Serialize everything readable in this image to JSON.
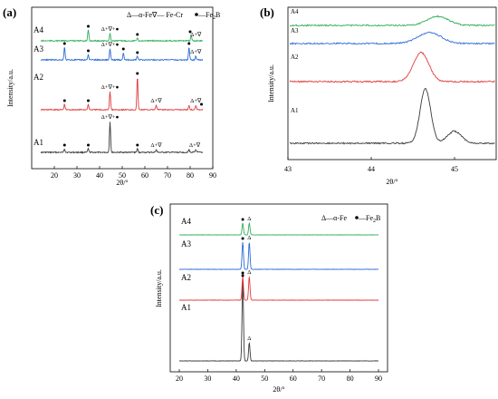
{
  "chart_data": [
    {
      "panel_label": "(a)",
      "type": "line",
      "xlabel": "2θ/°",
      "ylabel": "Intensity/a.u.",
      "xlim": [
        10,
        90
      ],
      "xticks": [
        "20",
        "30",
        "40",
        "50",
        "60",
        "70",
        "80",
        "90"
      ],
      "legend": "Δ—α-Fe∇— Fe-Cr ●—Fe₂B",
      "legend_parts": {
        "a": "Δ—α-Fe",
        "b": "∇— Fe-Cr",
        "c": "—Fe",
        "sub": "2",
        "d": "B"
      },
      "series": [
        {
          "name": "A1",
          "color": "#3a3a3a",
          "peaks": [
            {
              "x": 24.5,
              "h": 4
            },
            {
              "x": 35,
              "h": 4
            },
            {
              "x": 44.6,
              "h": 34
            },
            {
              "x": 56.7,
              "h": 4
            },
            {
              "x": 65,
              "h": 3
            },
            {
              "x": 79.5,
              "h": 3
            },
            {
              "x": 82.5,
              "h": 3
            }
          ],
          "annotations": [
            {
              "x": 24.5,
              "text": "●"
            },
            {
              "x": 35,
              "text": "●"
            },
            {
              "x": 44.6,
              "text": "Δ+∇+●"
            },
            {
              "x": 56.7,
              "text": "●"
            },
            {
              "x": 65,
              "text": "Δ+∇"
            },
            {
              "x": 82,
              "text": "Δ+∇"
            }
          ]
        },
        {
          "name": "A2",
          "color": "#e03c3c",
          "peaks": [
            {
              "x": 24.5,
              "h": 6
            },
            {
              "x": 35,
              "h": 6
            },
            {
              "x": 44.6,
              "h": 20
            },
            {
              "x": 56.7,
              "h": 36
            },
            {
              "x": 65,
              "h": 5
            },
            {
              "x": 79.5,
              "h": 5
            },
            {
              "x": 82.5,
              "h": 5
            }
          ],
          "annotations": [
            {
              "x": 24.5,
              "text": "●"
            },
            {
              "x": 35,
              "text": "●"
            },
            {
              "x": 44.6,
              "text": "Δ+∇+●"
            },
            {
              "x": 56.7,
              "text": "●"
            },
            {
              "x": 65,
              "text": "Δ+∇"
            },
            {
              "x": 82.5,
              "text": "Δ+∇"
            },
            {
              "x": 85,
              "text": "●"
            }
          ]
        },
        {
          "name": "A3",
          "color": "#2b6bd6",
          "peaks": [
            {
              "x": 24.5,
              "h": 14
            },
            {
              "x": 35,
              "h": 6
            },
            {
              "x": 44.6,
              "h": 12
            },
            {
              "x": 50.5,
              "h": 8
            },
            {
              "x": 56.7,
              "h": 4
            },
            {
              "x": 79.5,
              "h": 14
            },
            {
              "x": 82.5,
              "h": 4
            }
          ],
          "annotations": [
            {
              "x": 24.5,
              "text": "●"
            },
            {
              "x": 35,
              "text": "●"
            },
            {
              "x": 44.6,
              "text": "Δ+∇+●"
            },
            {
              "x": 50.5,
              "text": "●"
            },
            {
              "x": 56.7,
              "text": "●"
            },
            {
              "x": 79.5,
              "text": "●"
            },
            {
              "x": 82.5,
              "text": "Δ+∇"
            }
          ]
        },
        {
          "name": "A4",
          "color": "#2fae5a",
          "peaks": [
            {
              "x": 35,
              "h": 12
            },
            {
              "x": 44.6,
              "h": 8
            },
            {
              "x": 56.7,
              "h": 3
            },
            {
              "x": 80.5,
              "h": 6
            }
          ],
          "annotations": [
            {
              "x": 35,
              "text": "●"
            },
            {
              "x": 44.6,
              "text": "Δ+∇+●"
            },
            {
              "x": 56.7,
              "text": "●"
            },
            {
              "x": 80,
              "text": "●"
            },
            {
              "x": 82.5,
              "text": "Δ+∇"
            }
          ]
        }
      ]
    },
    {
      "panel_label": "(b)",
      "type": "line",
      "xlabel": "2θ/°",
      "ylabel": "Intensity/a.u.",
      "xlim": [
        43,
        45.5
      ],
      "xticks": [
        "43",
        "44",
        "45"
      ],
      "series": [
        {
          "name": "A1",
          "color": "#3a3a3a",
          "peak_x": 44.65,
          "height": 60,
          "width": 0.09,
          "shoulder": 45.0
        },
        {
          "name": "A2",
          "color": "#e03c3c",
          "peak_x": 44.6,
          "height": 32,
          "width": 0.13
        },
        {
          "name": "A3",
          "color": "#2b6bd6",
          "peak_x": 44.7,
          "height": 12,
          "width": 0.2
        },
        {
          "name": "A4",
          "color": "#2fae5a",
          "peak_x": 44.8,
          "height": 10,
          "width": 0.18
        }
      ]
    },
    {
      "panel_label": "(c)",
      "type": "line",
      "xlabel": "2θ/°",
      "ylabel": "Intensity/a.u.",
      "xlim": [
        20,
        90
      ],
      "xticks": [
        "20",
        "30",
        "40",
        "50",
        "60",
        "70",
        "80",
        "90"
      ],
      "legend": "Δ—α-Fe ●—Fe₂B",
      "legend_parts": {
        "a": "Δ—α-Fe",
        "c": "—Fe",
        "sub": "2",
        "d": "B"
      },
      "series": [
        {
          "name": "A1",
          "color": "#3a3a3a",
          "peaks": [
            {
              "x": 42.3,
              "h": 90
            },
            {
              "x": 44.6,
              "h": 20
            }
          ],
          "annotations": [
            {
              "x": 42.3,
              "text": "●"
            },
            {
              "x": 44.6,
              "text": "Δ"
            }
          ]
        },
        {
          "name": "A2",
          "color": "#e03c3c",
          "peaks": [
            {
              "x": 42.3,
              "h": 26
            },
            {
              "x": 44.6,
              "h": 26
            }
          ],
          "annotations": [
            {
              "x": 42.3,
              "text": "●"
            },
            {
              "x": 44.6,
              "text": "Δ"
            }
          ]
        },
        {
          "name": "A3",
          "color": "#2b6bd6",
          "peaks": [
            {
              "x": 42.3,
              "h": 30
            },
            {
              "x": 44.6,
              "h": 30
            }
          ],
          "annotations": [
            {
              "x": 42.3,
              "text": "●"
            },
            {
              "x": 44.6,
              "text": "Δ"
            }
          ]
        },
        {
          "name": "A4",
          "color": "#2fae5a",
          "peaks": [
            {
              "x": 42.3,
              "h": 13
            },
            {
              "x": 44.6,
              "h": 13
            }
          ],
          "annotations": [
            {
              "x": 42.3,
              "text": "●"
            },
            {
              "x": 44.6,
              "text": "Δ"
            }
          ]
        }
      ]
    }
  ]
}
